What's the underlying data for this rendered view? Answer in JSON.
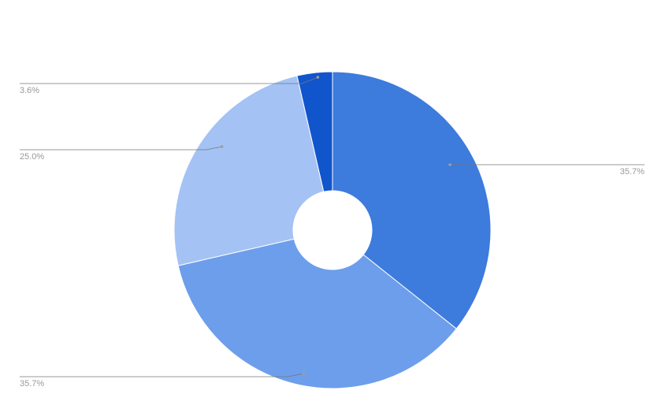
{
  "chart_data": {
    "type": "pie",
    "donut": true,
    "legend": "none",
    "start_angle_deg": 0,
    "direction": "clockwise",
    "slices": [
      {
        "value": 35.7,
        "label": "35.7%",
        "color": "#3d7bdc"
      },
      {
        "value": 35.7,
        "label": "35.7%",
        "color": "#6d9eeb"
      },
      {
        "value": 25.0,
        "label": "25.0%",
        "color": "#a4c2f4"
      },
      {
        "value": 3.6,
        "label": "3.6%",
        "color": "#1155cc"
      }
    ]
  }
}
